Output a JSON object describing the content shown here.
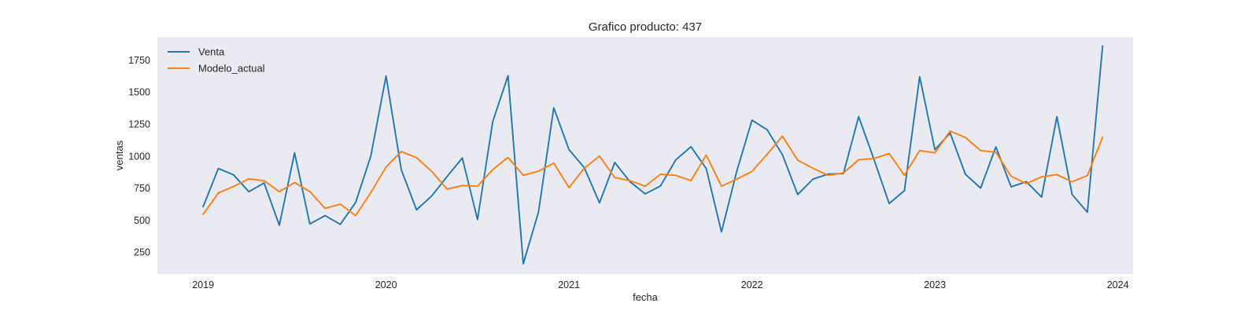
{
  "chart_data": {
    "type": "line",
    "title": "Grafico producto: 437",
    "xlabel": "fecha",
    "ylabel": "ventas",
    "x_start": "2019-01",
    "x_frequency": "monthly",
    "xlim": [
      "2018-10",
      "2024-02"
    ],
    "ylim": [
      80,
      1930
    ],
    "x_ticks": [
      {
        "label": "2019",
        "value": "2019-01"
      },
      {
        "label": "2020",
        "value": "2020-01"
      },
      {
        "label": "2021",
        "value": "2021-01"
      },
      {
        "label": "2022",
        "value": "2022-01"
      },
      {
        "label": "2023",
        "value": "2023-01"
      },
      {
        "label": "2024",
        "value": "2024-01"
      }
    ],
    "y_ticks": [
      250,
      500,
      750,
      1000,
      1250,
      1500,
      1750
    ],
    "grid": false,
    "legend_position": "top-left",
    "series": [
      {
        "name": "Venta",
        "color": "#1f77b4",
        "values": [
          605,
          903,
          853,
          722,
          790,
          460,
          1025,
          470,
          535,
          467,
          637,
          1000,
          1625,
          893,
          580,
          690,
          840,
          985,
          505,
          1270,
          1628,
          160,
          565,
          1377,
          1050,
          910,
          635,
          950,
          800,
          705,
          767,
          970,
          1073,
          903,
          408,
          880,
          1280,
          1205,
          1010,
          700,
          820,
          860,
          863,
          1308,
          975,
          630,
          730,
          1620,
          1050,
          1180,
          858,
          750,
          1072,
          760,
          800,
          680,
          1307,
          700,
          562,
          1860
        ]
      },
      {
        "name": "Modelo_actual",
        "color": "#ff7f0e",
        "values": [
          545,
          712,
          763,
          822,
          808,
          722,
          793,
          723,
          592,
          625,
          535,
          715,
          915,
          1035,
          988,
          880,
          742,
          770,
          765,
          895,
          990,
          850,
          882,
          945,
          755,
          905,
          1000,
          832,
          808,
          765,
          858,
          850,
          808,
          1008,
          765,
          820,
          880,
          1015,
          1155,
          968,
          905,
          850,
          868,
          972,
          980,
          1020,
          850,
          1043,
          1025,
          1195,
          1145,
          1043,
          1030,
          843,
          785,
          838,
          855,
          800,
          848,
          1148
        ]
      }
    ]
  }
}
